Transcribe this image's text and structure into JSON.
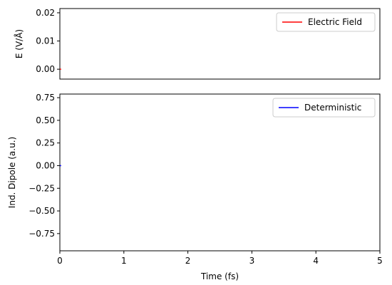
{
  "chart_data": [
    {
      "type": "line",
      "ylabel": "E (V/Å)",
      "xlim": [
        0,
        5
      ],
      "ylim": [
        -0.0035,
        0.0215
      ],
      "yticks": [
        0.0,
        0.01,
        0.02
      ],
      "ytick_labels": [
        "0.00",
        "0.01",
        "0.02"
      ],
      "legend_position": "top-right",
      "grid": false,
      "series": [
        {
          "name": "Electric Field",
          "color": "#ff0000",
          "x": [
            0,
            0.02
          ],
          "y": [
            0,
            0
          ]
        }
      ]
    },
    {
      "type": "line",
      "xlabel": "Time (fs)",
      "ylabel": "Ind. Dipole (a.u.)",
      "xlim": [
        0,
        5
      ],
      "ylim": [
        -0.94,
        0.79
      ],
      "xticks": [
        0,
        1,
        2,
        3,
        4,
        5
      ],
      "xtick_labels": [
        "0",
        "1",
        "2",
        "3",
        "4",
        "5"
      ],
      "yticks": [
        0.75,
        0.5,
        0.25,
        0.0,
        -0.25,
        -0.5,
        -0.75
      ],
      "ytick_labels": [
        "0.75",
        "0.50",
        "0.25",
        "0.00",
        "−0.25",
        "−0.50",
        "−0.75"
      ],
      "legend_position": "top-right",
      "grid": false,
      "series": [
        {
          "name": "Deterministic",
          "color": "#0000ff",
          "x": [
            0,
            0.02
          ],
          "y": [
            0,
            0
          ]
        }
      ]
    }
  ]
}
